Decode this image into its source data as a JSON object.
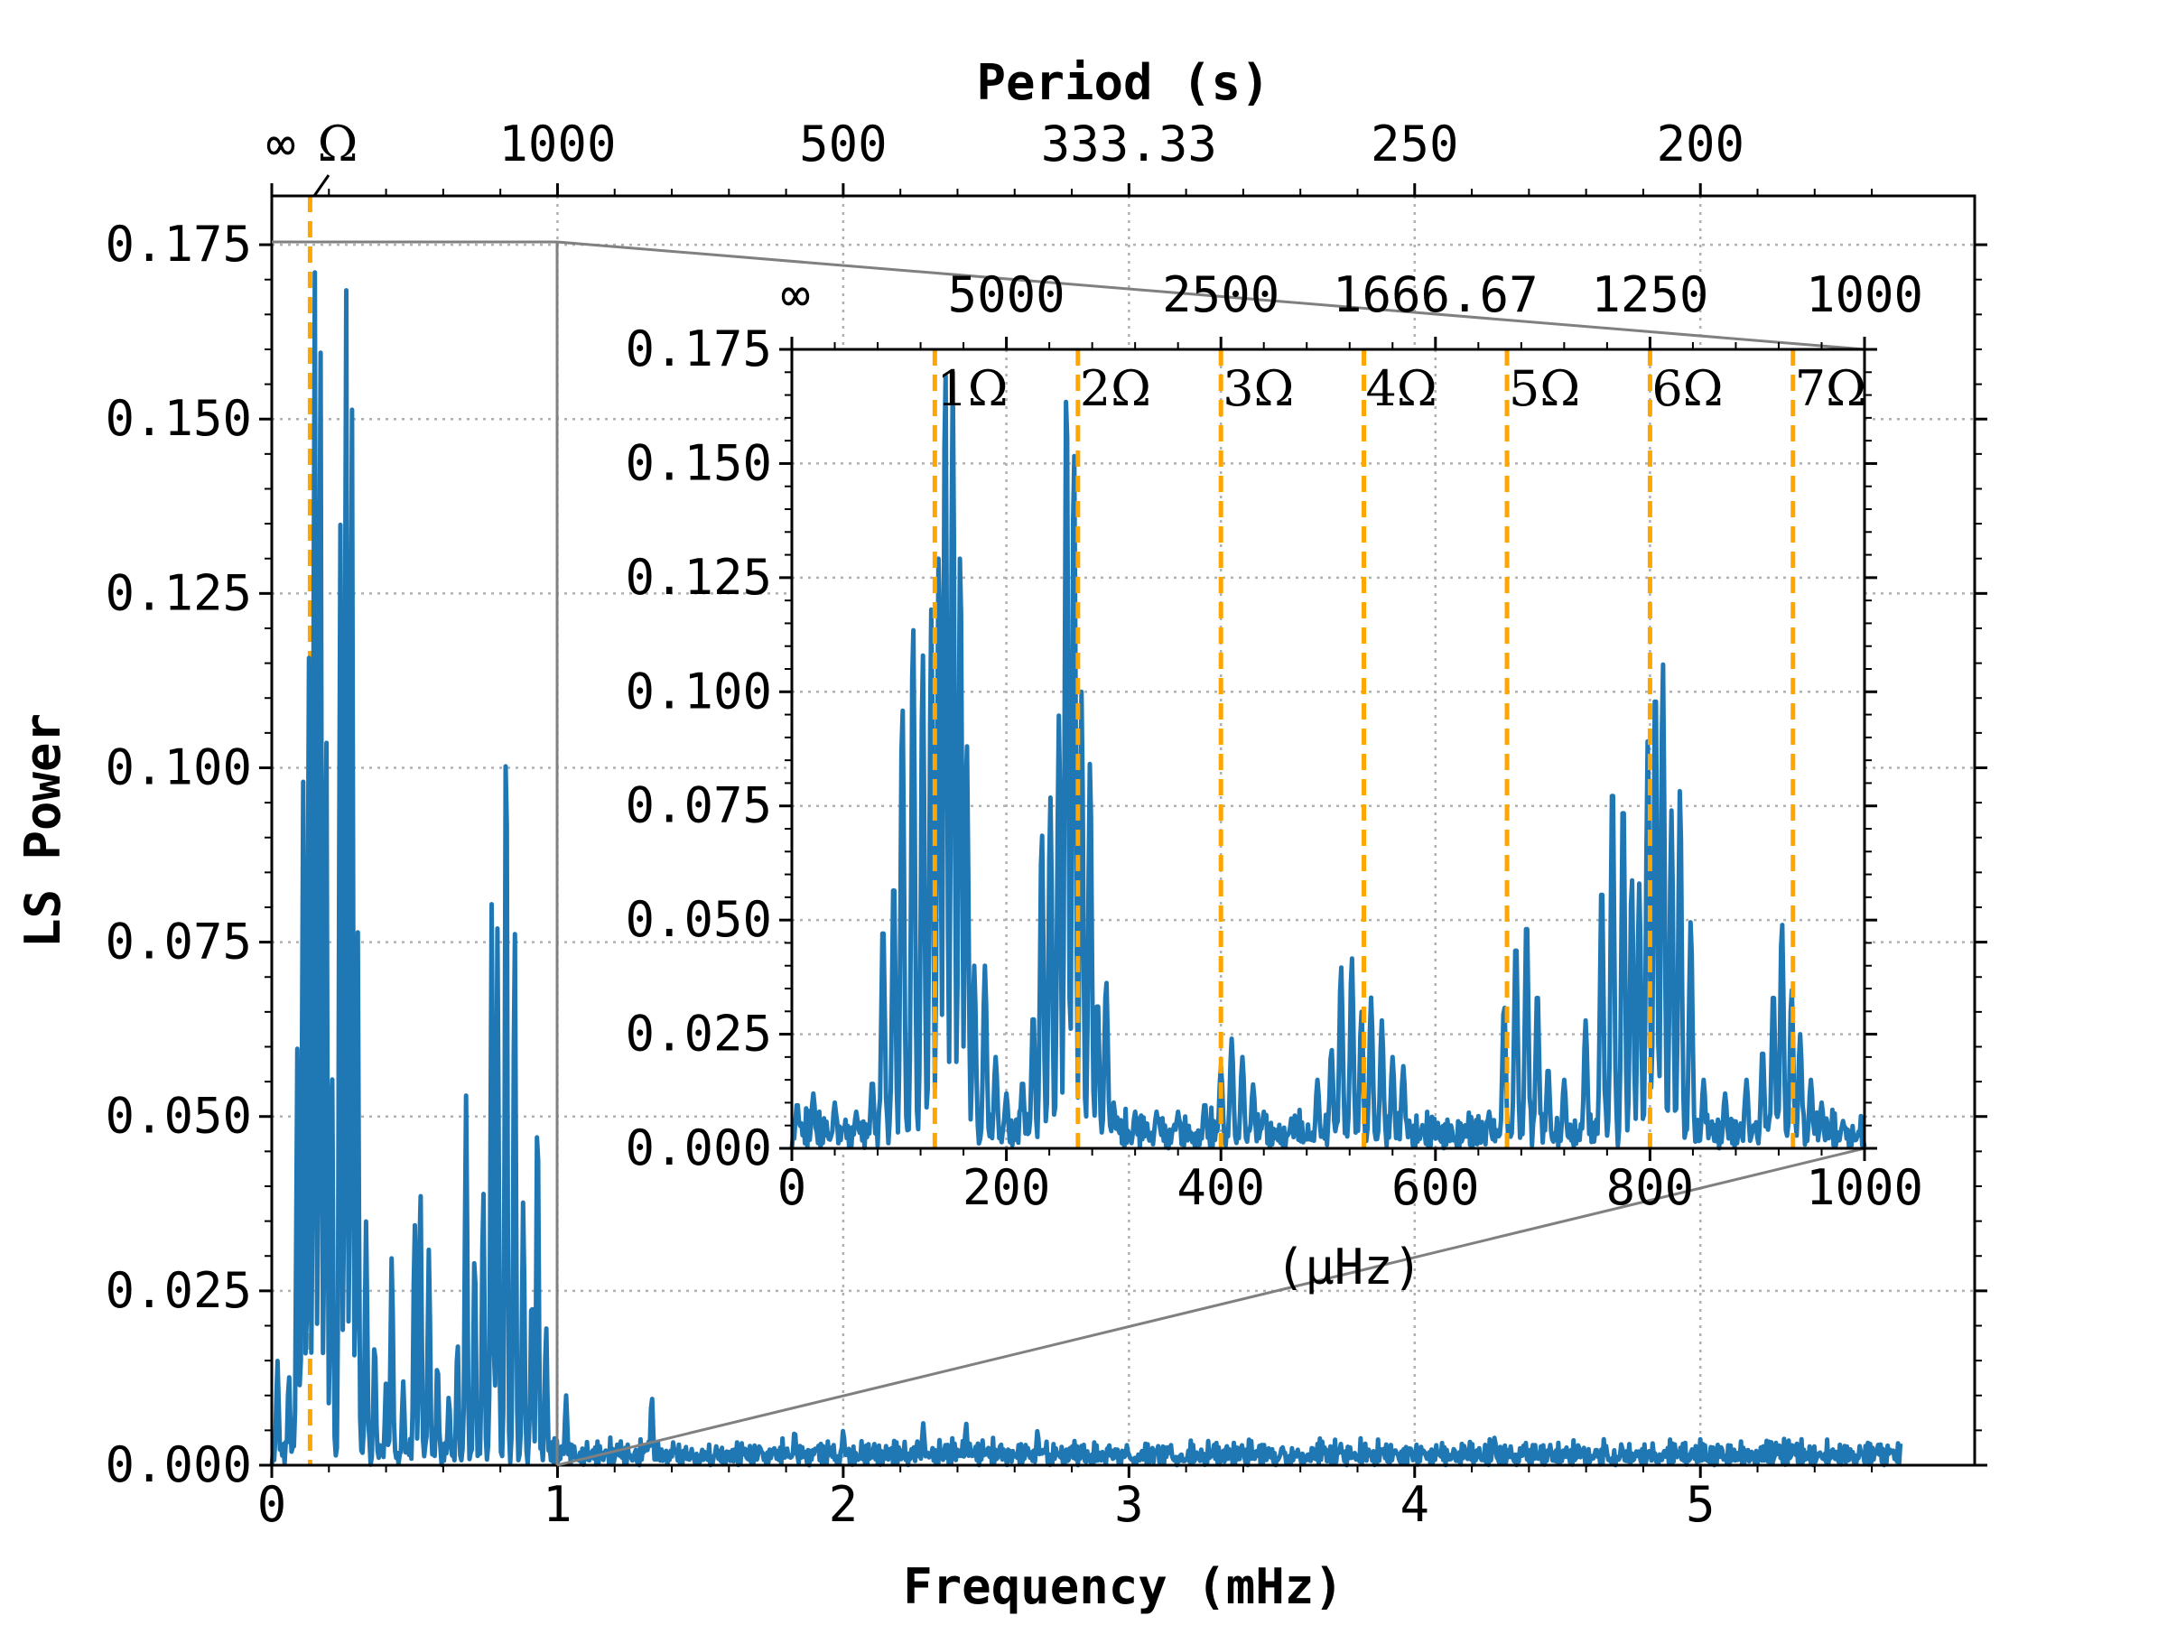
{
  "chart_data": {
    "type": "line",
    "main": {
      "title": "",
      "xlabel": "Frequency (mHz)",
      "ylabel": "LS Power",
      "top_xlabel": "Period (s)",
      "xlim": [
        0,
        5.96
      ],
      "ylim": [
        0,
        0.182
      ],
      "xticks": [
        0,
        1,
        2,
        3,
        4,
        5
      ],
      "xtick_labels": [
        "0",
        "1",
        "2",
        "3",
        "4",
        "5"
      ],
      "yticks": [
        0,
        0.025,
        0.05,
        0.075,
        0.1,
        0.125,
        0.15,
        0.175
      ],
      "ytick_labels": [
        "0.000",
        "0.025",
        "0.050",
        "0.075",
        "0.100",
        "0.125",
        "0.150",
        "0.175"
      ],
      "top_ticks_freq": [
        0,
        1,
        2,
        3,
        4,
        5
      ],
      "top_tick_labels": [
        "∞",
        "1000",
        "500",
        "333.33",
        "250",
        "200"
      ],
      "omega_label": "Ω",
      "omega_freq": 0.134,
      "grid": true,
      "series": [
        {
          "name": "LS power",
          "color": "#1f77b4",
          "peaks": [
            [
              0.02,
              0.015
            ],
            [
              0.06,
              0.013
            ],
            [
              0.09,
              0.06
            ],
            [
              0.11,
              0.098
            ],
            [
              0.13,
              0.116
            ],
            [
              0.15,
              0.173
            ],
            [
              0.17,
              0.164
            ],
            [
              0.19,
              0.109
            ],
            [
              0.21,
              0.06
            ],
            [
              0.24,
              0.135
            ],
            [
              0.26,
              0.17
            ],
            [
              0.28,
              0.155
            ],
            [
              0.3,
              0.08
            ],
            [
              0.33,
              0.035
            ],
            [
              0.36,
              0.018
            ],
            [
              0.4,
              0.012
            ],
            [
              0.42,
              0.03
            ],
            [
              0.46,
              0.012
            ],
            [
              0.5,
              0.035
            ],
            [
              0.52,
              0.04
            ],
            [
              0.55,
              0.031
            ],
            [
              0.58,
              0.015
            ],
            [
              0.62,
              0.01
            ],
            [
              0.65,
              0.018
            ],
            [
              0.68,
              0.053
            ],
            [
              0.71,
              0.031
            ],
            [
              0.74,
              0.04
            ],
            [
              0.77,
              0.081
            ],
            [
              0.79,
              0.077
            ],
            [
              0.82,
              0.108
            ],
            [
              0.85,
              0.078
            ],
            [
              0.88,
              0.038
            ],
            [
              0.91,
              0.025
            ],
            [
              0.93,
              0.051
            ],
            [
              0.96,
              0.02
            ],
            [
              1.03,
              0.01
            ],
            [
              1.33,
              0.01
            ],
            [
              1.83,
              0.005
            ],
            [
              2.0,
              0.005
            ],
            [
              2.28,
              0.006
            ],
            [
              2.43,
              0.006
            ],
            [
              2.68,
              0.005
            ],
            [
              2.93,
              0.003
            ],
            [
              3.4,
              0.002
            ],
            [
              4.28,
              0.004
            ],
            [
              5.0,
              0.001
            ],
            [
              5.7,
              0.0
            ]
          ]
        }
      ]
    },
    "inset": {
      "xlabel": "(μHz)",
      "xlim": [
        0,
        1000
      ],
      "ylim": [
        0,
        0.175
      ],
      "xticks": [
        0,
        200,
        400,
        600,
        800,
        1000
      ],
      "xtick_labels": [
        "0",
        "200",
        "400",
        "600",
        "800",
        "1000"
      ],
      "yticks": [
        0,
        0.025,
        0.05,
        0.075,
        0.1,
        0.125,
        0.15,
        0.175
      ],
      "ytick_labels": [
        "0.000",
        "0.025",
        "0.050",
        "0.075",
        "0.100",
        "0.125",
        "0.150",
        "0.175"
      ],
      "top_ticks_freq": [
        0,
        200,
        400,
        600,
        800,
        1000
      ],
      "top_tick_labels": [
        "∞",
        "5000",
        "2500",
        "1666.67",
        "1250",
        "1000"
      ],
      "harmonics": [
        {
          "label": "1Ω",
          "freq": 133.3
        },
        {
          "label": "2Ω",
          "freq": 266.7
        },
        {
          "label": "3Ω",
          "freq": 400.0
        },
        {
          "label": "4Ω",
          "freq": 533.3
        },
        {
          "label": "5Ω",
          "freq": 666.7
        },
        {
          "label": "6Ω",
          "freq": 800.0
        },
        {
          "label": "7Ω",
          "freq": 933.3
        }
      ],
      "harmonic_color": "#ffa500",
      "series_color": "#1f77b4",
      "peaks": [
        [
          5,
          0.01
        ],
        [
          20,
          0.012
        ],
        [
          40,
          0.01
        ],
        [
          60,
          0.008
        ],
        [
          75,
          0.015
        ],
        [
          85,
          0.05
        ],
        [
          95,
          0.06
        ],
        [
          103,
          0.098
        ],
        [
          113,
          0.116
        ],
        [
          122,
          0.109
        ],
        [
          130,
          0.118
        ],
        [
          137,
          0.132
        ],
        [
          143,
          0.173
        ],
        [
          150,
          0.17
        ],
        [
          157,
          0.132
        ],
        [
          163,
          0.09
        ],
        [
          170,
          0.04
        ],
        [
          180,
          0.04
        ],
        [
          190,
          0.02
        ],
        [
          200,
          0.012
        ],
        [
          215,
          0.015
        ],
        [
          225,
          0.03
        ],
        [
          233,
          0.07
        ],
        [
          241,
          0.077
        ],
        [
          249,
          0.095
        ],
        [
          256,
          0.17
        ],
        [
          263,
          0.155
        ],
        [
          270,
          0.1
        ],
        [
          278,
          0.085
        ],
        [
          285,
          0.033
        ],
        [
          293,
          0.037
        ],
        [
          300,
          0.01
        ],
        [
          320,
          0.008
        ],
        [
          340,
          0.008
        ],
        [
          360,
          0.008
        ],
        [
          385,
          0.01
        ],
        [
          400,
          0.018
        ],
        [
          410,
          0.024
        ],
        [
          420,
          0.02
        ],
        [
          430,
          0.014
        ],
        [
          440,
          0.008
        ],
        [
          470,
          0.005
        ],
        [
          490,
          0.015
        ],
        [
          503,
          0.022
        ],
        [
          512,
          0.04
        ],
        [
          522,
          0.042
        ],
        [
          531,
          0.03
        ],
        [
          540,
          0.033
        ],
        [
          550,
          0.028
        ],
        [
          560,
          0.02
        ],
        [
          570,
          0.018
        ],
        [
          600,
          0.002
        ],
        [
          630,
          0.002
        ],
        [
          650,
          0.008
        ],
        [
          664,
          0.032
        ],
        [
          675,
          0.046
        ],
        [
          685,
          0.051
        ],
        [
          695,
          0.035
        ],
        [
          705,
          0.018
        ],
        [
          720,
          0.015
        ],
        [
          740,
          0.028
        ],
        [
          755,
          0.059
        ],
        [
          765,
          0.082
        ],
        [
          775,
          0.078
        ],
        [
          783,
          0.06
        ],
        [
          790,
          0.058
        ],
        [
          798,
          0.09
        ],
        [
          805,
          0.104
        ],
        [
          812,
          0.107
        ],
        [
          820,
          0.074
        ],
        [
          828,
          0.079
        ],
        [
          838,
          0.05
        ],
        [
          850,
          0.015
        ],
        [
          870,
          0.012
        ],
        [
          890,
          0.015
        ],
        [
          905,
          0.022
        ],
        [
          915,
          0.035
        ],
        [
          923,
          0.05
        ],
        [
          932,
          0.035
        ],
        [
          940,
          0.025
        ],
        [
          950,
          0.015
        ],
        [
          960,
          0.01
        ],
        [
          980,
          0.006
        ],
        [
          995,
          0.003
        ]
      ]
    }
  }
}
